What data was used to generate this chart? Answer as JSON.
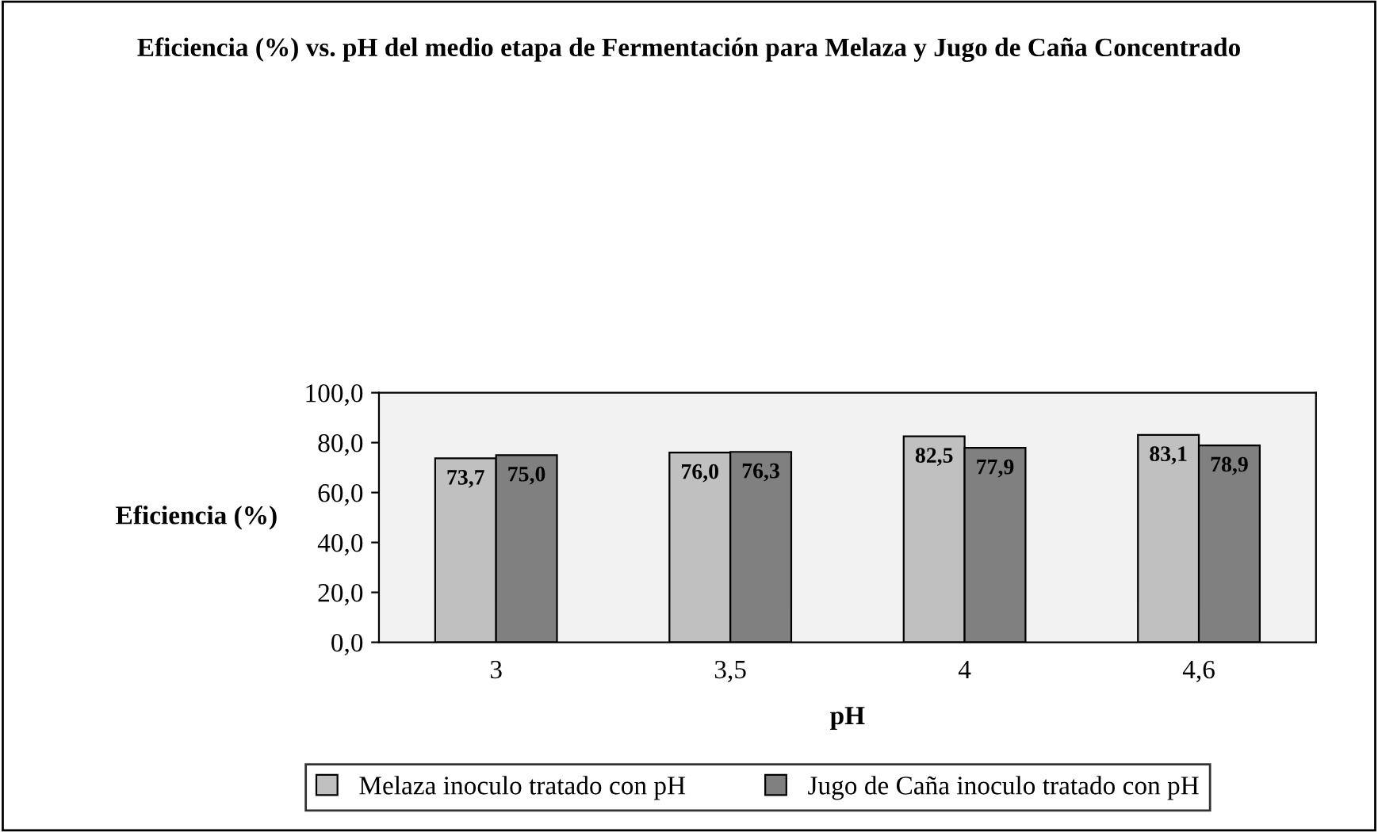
{
  "chart_data": {
    "type": "bar",
    "title": "Eficiencia (%) vs. pH del medio etapa de Fermentación para Melaza y Jugo de Caña Concentrado",
    "xlabel": "pH",
    "ylabel": "Eficiencia (%)",
    "categories": [
      "3",
      "3,5",
      "4",
      "4,6"
    ],
    "series": [
      {
        "name": "Melaza inoculo tratado con pH",
        "color": "#c0c0c0",
        "values": [
          73.7,
          76.0,
          82.5,
          83.1
        ],
        "value_labels": [
          "73,7",
          "76,0",
          "82,5",
          "83,1"
        ]
      },
      {
        "name": "Jugo de Caña inoculo tratado con pH",
        "color": "#808080",
        "values": [
          75.0,
          76.3,
          77.9,
          78.9
        ],
        "value_labels": [
          "75,0",
          "76,3",
          "77,9",
          "78,9"
        ]
      }
    ],
    "ylim": [
      0,
      100
    ],
    "yticks": [
      {
        "value": 0,
        "label": "0,0"
      },
      {
        "value": 20,
        "label": "20,0"
      },
      {
        "value": 40,
        "label": "40,0"
      },
      {
        "value": 60,
        "label": "60,0"
      },
      {
        "value": 80,
        "label": "80,0"
      },
      {
        "value": 100,
        "label": "100,0"
      }
    ],
    "legend": "bottom"
  }
}
